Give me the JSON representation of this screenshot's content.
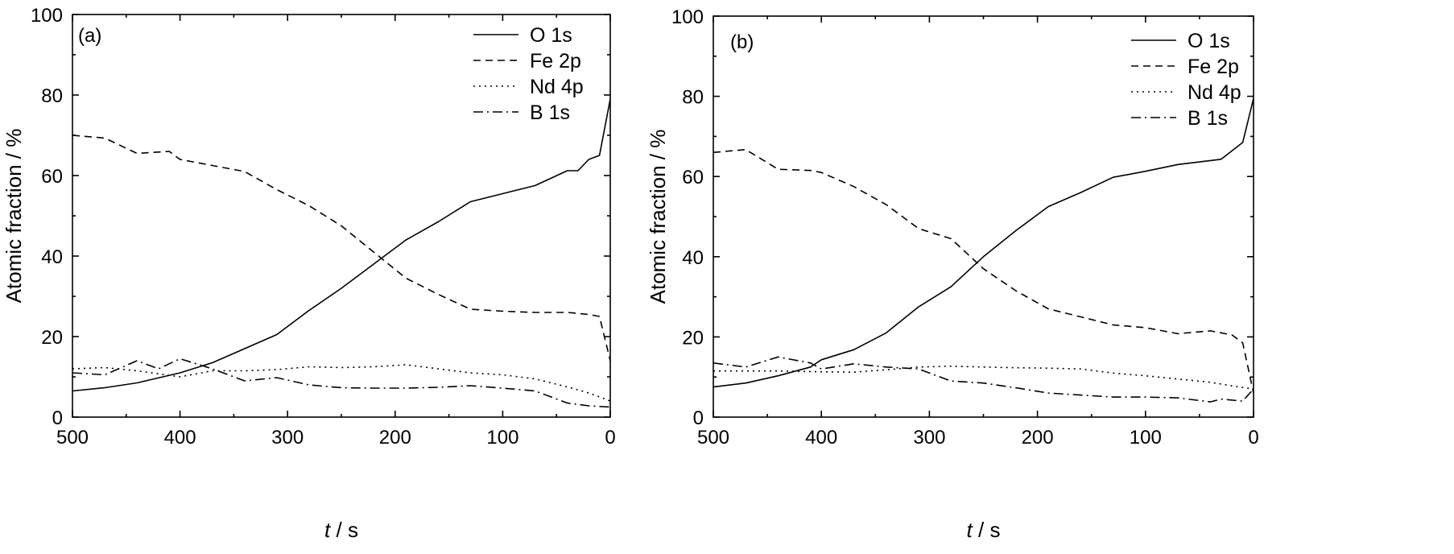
{
  "chart_data": [
    {
      "type": "line",
      "panel_label": "(a)",
      "xlabel": "t / s",
      "xlabel_var": "t",
      "xlabel_unit": " / s",
      "ylabel": "Atomic fraction / %",
      "xlim": [
        500,
        0
      ],
      "ylim": [
        0,
        100
      ],
      "x_ticks": [
        500,
        400,
        300,
        200,
        100,
        0
      ],
      "y_ticks": [
        0,
        20,
        40,
        60,
        80,
        100
      ],
      "legend_position": "top-right",
      "series": [
        {
          "name": "O 1s",
          "style": "solid",
          "points": [
            [
              500,
              6.5
            ],
            [
              470,
              7.3
            ],
            [
              440,
              8.5
            ],
            [
              400,
              11
            ],
            [
              370,
              13.5
            ],
            [
              340,
              17
            ],
            [
              310,
              20.5
            ],
            [
              280,
              26.5
            ],
            [
              250,
              32
            ],
            [
              220,
              38
            ],
            [
              190,
              44
            ],
            [
              160,
              48.5
            ],
            [
              130,
              53.5
            ],
            [
              100,
              55.5
            ],
            [
              70,
              57.5
            ],
            [
              40,
              61.2
            ],
            [
              30,
              61.2
            ],
            [
              20,
              64
            ],
            [
              10,
              65
            ],
            [
              0,
              79
            ]
          ]
        },
        {
          "name": "Fe 2p",
          "style": "dashed",
          "points": [
            [
              500,
              70
            ],
            [
              470,
              69.3
            ],
            [
              440,
              65.5
            ],
            [
              410,
              66
            ],
            [
              400,
              64
            ],
            [
              370,
              62.5
            ],
            [
              340,
              61
            ],
            [
              310,
              56.5
            ],
            [
              280,
              52.5
            ],
            [
              250,
              47.5
            ],
            [
              220,
              41
            ],
            [
              190,
              34.5
            ],
            [
              160,
              30.5
            ],
            [
              130,
              26.8
            ],
            [
              100,
              26.3
            ],
            [
              70,
              26
            ],
            [
              40,
              26
            ],
            [
              20,
              25.5
            ],
            [
              10,
              25
            ],
            [
              0,
              14
            ]
          ]
        },
        {
          "name": "Nd 4p",
          "style": "dotted",
          "points": [
            [
              500,
              12
            ],
            [
              470,
              12.3
            ],
            [
              440,
              11.5
            ],
            [
              400,
              10
            ],
            [
              370,
              11.5
            ],
            [
              340,
              11.5
            ],
            [
              310,
              11.8
            ],
            [
              280,
              12.5
            ],
            [
              250,
              12.3
            ],
            [
              220,
              12.5
            ],
            [
              190,
              13
            ],
            [
              160,
              12
            ],
            [
              130,
              11
            ],
            [
              100,
              10.5
            ],
            [
              70,
              9.5
            ],
            [
              40,
              7.5
            ],
            [
              20,
              6
            ],
            [
              0,
              4
            ]
          ]
        },
        {
          "name": "B 1s",
          "style": "dashdot",
          "points": [
            [
              500,
              11
            ],
            [
              470,
              10.5
            ],
            [
              440,
              14
            ],
            [
              420,
              12
            ],
            [
              400,
              14.5
            ],
            [
              370,
              12
            ],
            [
              340,
              9
            ],
            [
              310,
              9.8
            ],
            [
              280,
              8
            ],
            [
              250,
              7.3
            ],
            [
              220,
              7.2
            ],
            [
              190,
              7.2
            ],
            [
              160,
              7.4
            ],
            [
              130,
              7.8
            ],
            [
              100,
              7.2
            ],
            [
              70,
              6.5
            ],
            [
              40,
              3.5
            ],
            [
              20,
              2.8
            ],
            [
              0,
              2.5
            ]
          ]
        }
      ]
    },
    {
      "type": "line",
      "panel_label": "(b)",
      "xlabel": "t / s",
      "xlabel_var": "t",
      "xlabel_unit": " / s",
      "ylabel": "Atomic fraction / %",
      "xlim": [
        500,
        0
      ],
      "ylim": [
        0,
        100
      ],
      "x_ticks": [
        500,
        400,
        300,
        200,
        100,
        0
      ],
      "y_ticks": [
        0,
        20,
        40,
        60,
        80,
        100
      ],
      "legend_position": "top-right",
      "series": [
        {
          "name": "O 1s",
          "style": "solid",
          "points": [
            [
              500,
              7.5
            ],
            [
              470,
              8.5
            ],
            [
              440,
              10.3
            ],
            [
              410,
              12.5
            ],
            [
              400,
              14.3
            ],
            [
              370,
              16.8
            ],
            [
              340,
              21
            ],
            [
              310,
              27.5
            ],
            [
              280,
              32.5
            ],
            [
              250,
              40
            ],
            [
              220,
              46.5
            ],
            [
              190,
              52.5
            ],
            [
              160,
              56
            ],
            [
              130,
              59.8
            ],
            [
              100,
              61.3
            ],
            [
              70,
              63
            ],
            [
              30,
              64.3
            ],
            [
              10,
              68.5
            ],
            [
              0,
              79.5
            ]
          ]
        },
        {
          "name": "Fe 2p",
          "style": "dashed",
          "points": [
            [
              500,
              66
            ],
            [
              470,
              66.7
            ],
            [
              440,
              61.8
            ],
            [
              410,
              61.5
            ],
            [
              400,
              61
            ],
            [
              370,
              57.5
            ],
            [
              340,
              53
            ],
            [
              310,
              47
            ],
            [
              280,
              44.5
            ],
            [
              250,
              37
            ],
            [
              220,
              31.5
            ],
            [
              190,
              27
            ],
            [
              160,
              25
            ],
            [
              130,
              23
            ],
            [
              100,
              22.3
            ],
            [
              70,
              20.8
            ],
            [
              40,
              21.5
            ],
            [
              20,
              20.5
            ],
            [
              10,
              18.5
            ],
            [
              0,
              6
            ]
          ]
        },
        {
          "name": "Nd 4p",
          "style": "dotted",
          "points": [
            [
              500,
              11.5
            ],
            [
              470,
              11.5
            ],
            [
              440,
              11.5
            ],
            [
              400,
              11.3
            ],
            [
              370,
              11.2
            ],
            [
              340,
              11.8
            ],
            [
              310,
              12.5
            ],
            [
              280,
              12.7
            ],
            [
              250,
              12.5
            ],
            [
              220,
              12.3
            ],
            [
              190,
              12.2
            ],
            [
              160,
              12
            ],
            [
              130,
              11
            ],
            [
              100,
              10.3
            ],
            [
              70,
              9.5
            ],
            [
              40,
              8.7
            ],
            [
              20,
              7.8
            ],
            [
              0,
              7
            ]
          ]
        },
        {
          "name": "B 1s",
          "style": "dashdot",
          "points": [
            [
              500,
              13.5
            ],
            [
              470,
              12.5
            ],
            [
              440,
              15
            ],
            [
              410,
              13.5
            ],
            [
              400,
              12
            ],
            [
              370,
              13.3
            ],
            [
              340,
              12.5
            ],
            [
              310,
              12
            ],
            [
              280,
              9
            ],
            [
              250,
              8.5
            ],
            [
              220,
              7.3
            ],
            [
              190,
              6
            ],
            [
              160,
              5.5
            ],
            [
              130,
              5
            ],
            [
              100,
              5
            ],
            [
              70,
              4.8
            ],
            [
              40,
              3.8
            ],
            [
              30,
              4.5
            ],
            [
              10,
              4
            ],
            [
              0,
              7
            ]
          ]
        }
      ]
    }
  ]
}
